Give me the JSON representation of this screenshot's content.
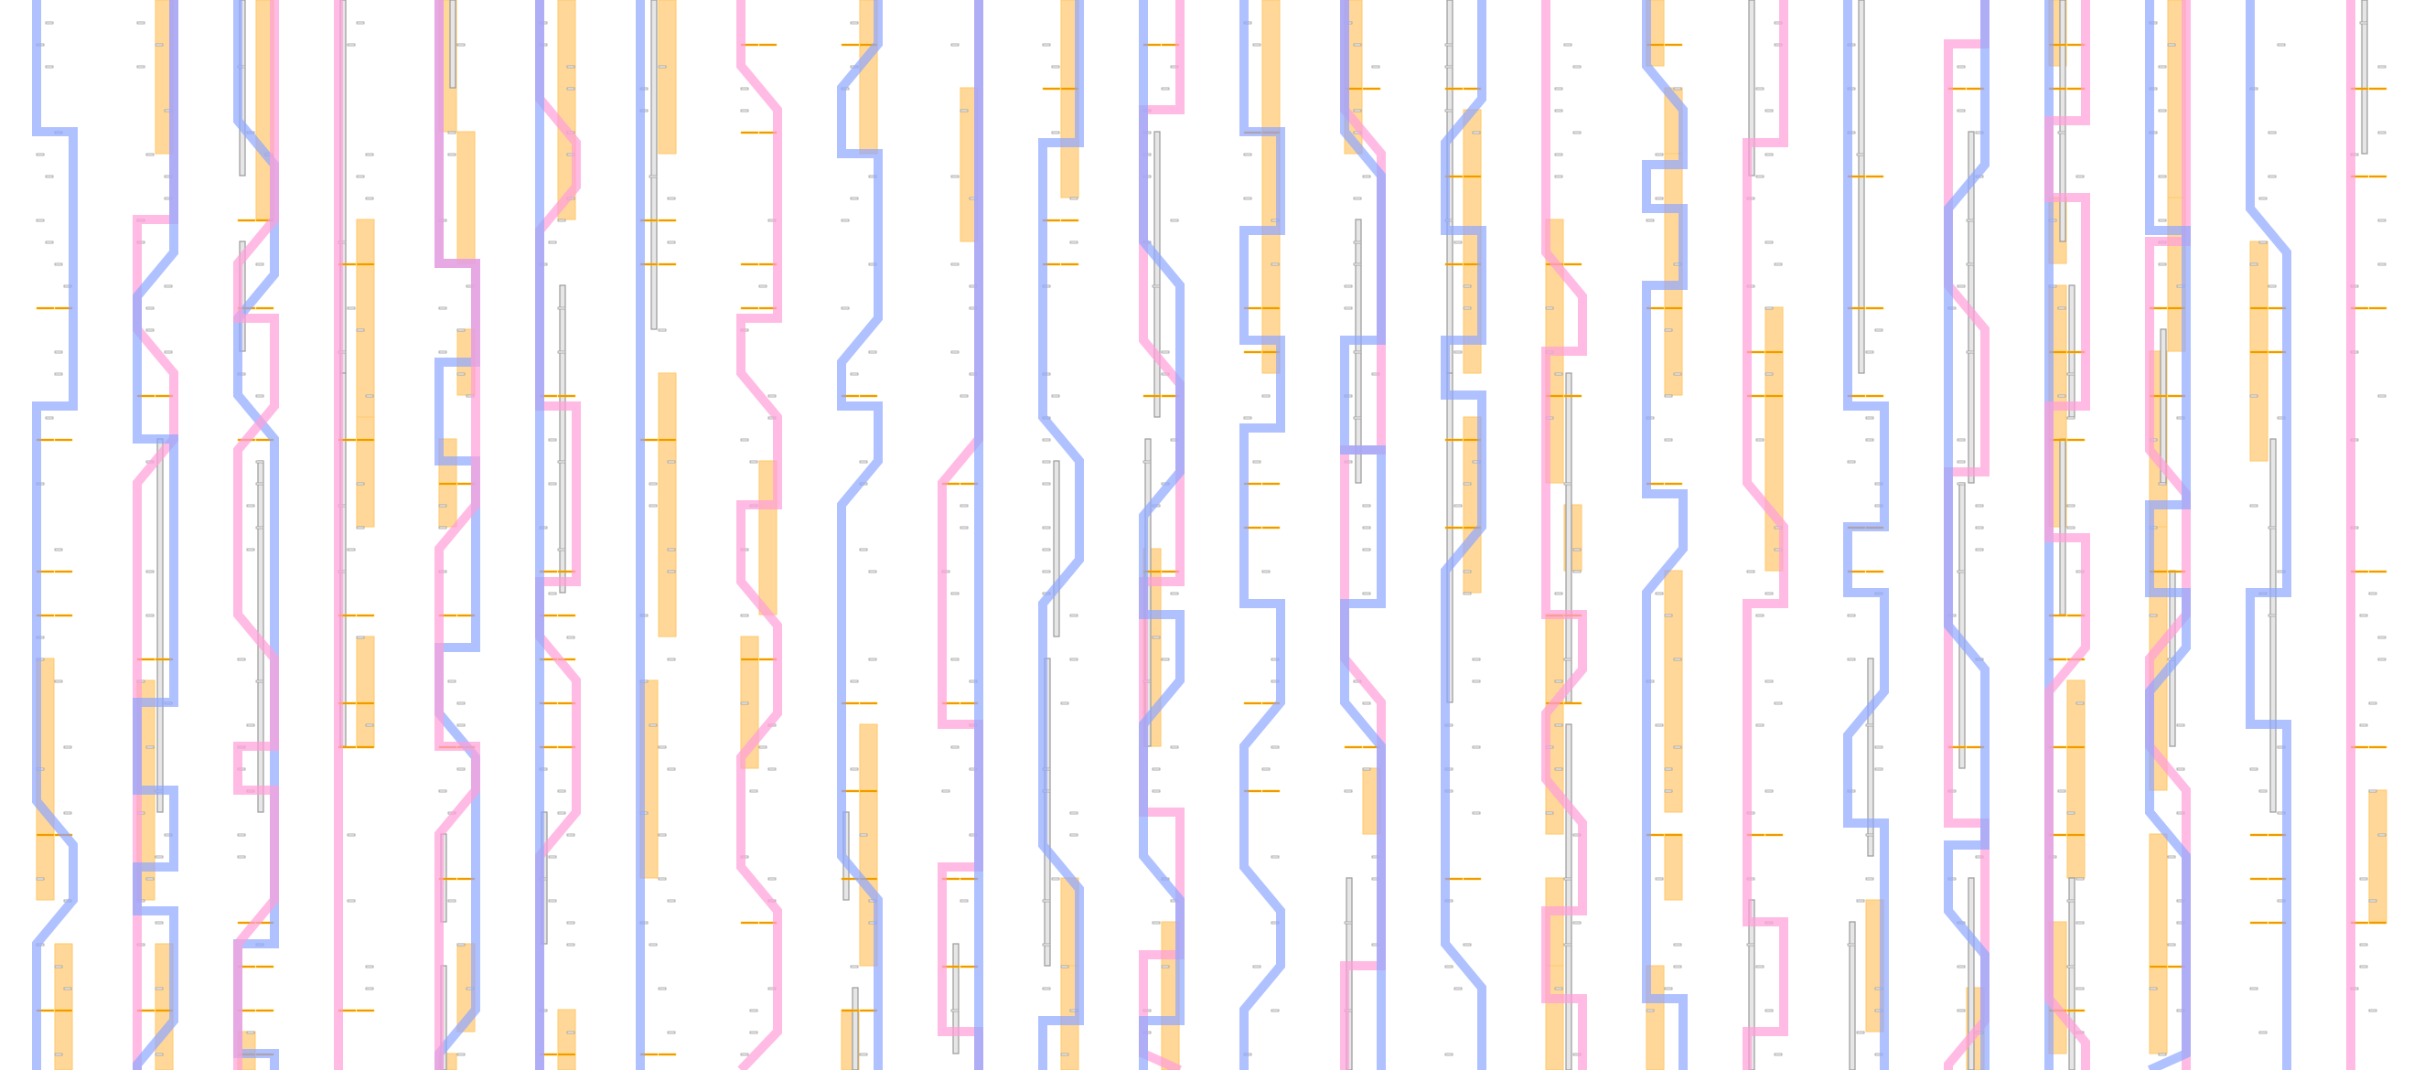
{
  "palette": {
    "background": "#ffffff",
    "block_fill": "#ffd899",
    "block_edge": "#ffc766",
    "rail": "#999999",
    "rail_inner": "#e6e6e6",
    "tick": "#999999",
    "dash": "#ee8800",
    "dash_hi": "#ffcc00",
    "path_blue": "#8fa6ff",
    "path_blue_edge": "#7f99ff",
    "path_pink": "#ff9ed8",
    "path_pink_edge": "#ff80cc"
  }
}
